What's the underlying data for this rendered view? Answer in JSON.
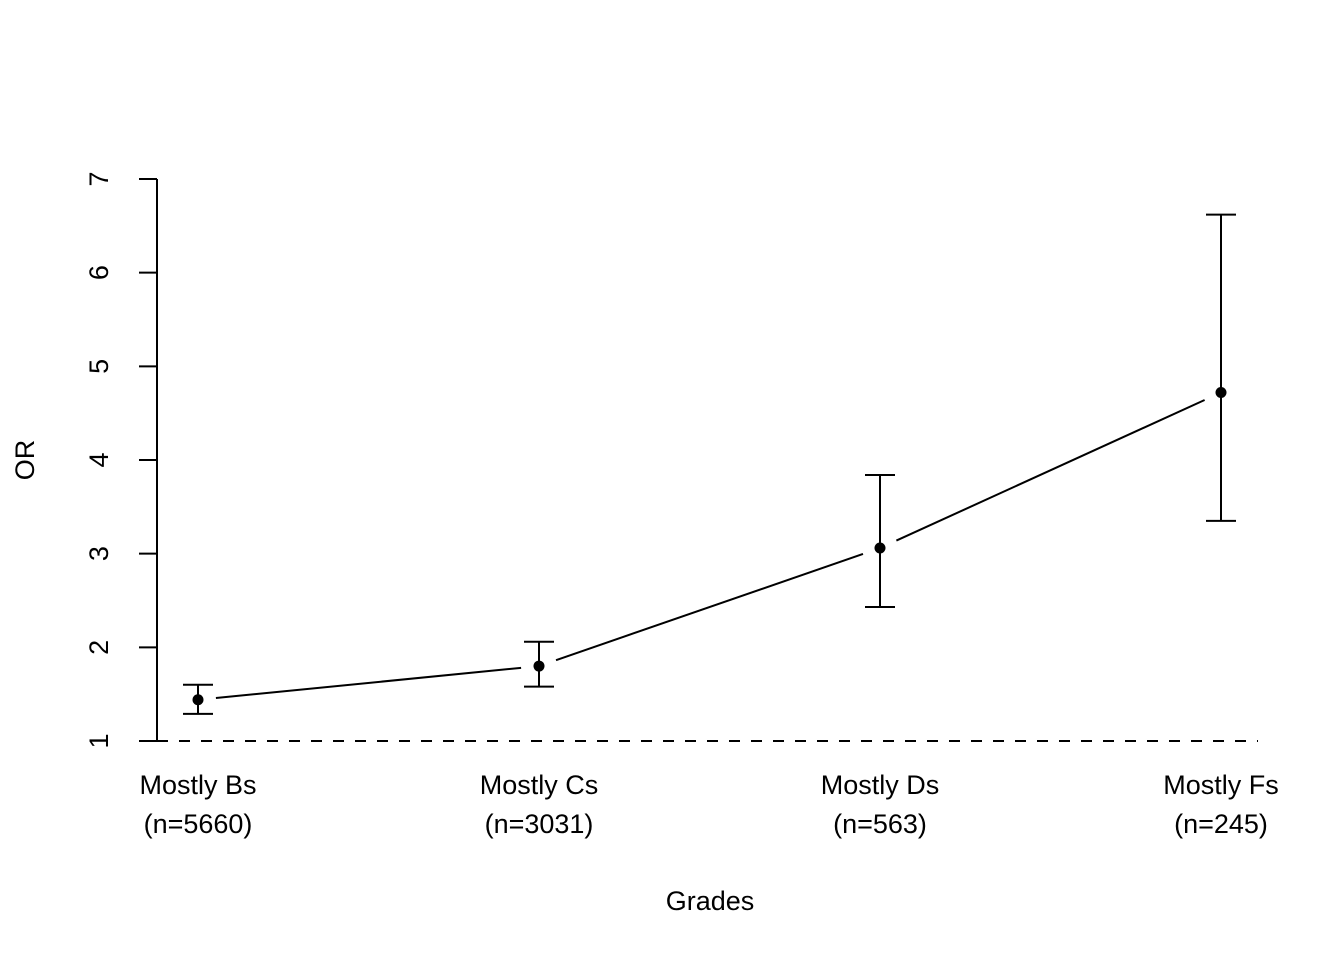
{
  "chart_data": {
    "type": "line",
    "title": "",
    "xlabel": "Grades",
    "ylabel": "OR",
    "categories": [
      {
        "name": "Mostly Bs",
        "n": "(n=5660)"
      },
      {
        "name": "Mostly Cs",
        "n": "(n=3031)"
      },
      {
        "name": "Mostly Ds",
        "n": "(n=563)"
      },
      {
        "name": "Mostly Fs",
        "n": "(n=245)"
      }
    ],
    "series": [
      {
        "values": [
          1.44,
          1.8,
          3.06,
          4.72
        ],
        "ci_lower": [
          1.29,
          1.58,
          2.43,
          3.35
        ],
        "ci_upper": [
          1.6,
          2.06,
          3.84,
          6.62
        ]
      }
    ],
    "reference_line": {
      "y": 1,
      "style": "dashed"
    },
    "yticks": [
      "1",
      "2",
      "3",
      "4",
      "5",
      "6",
      "7"
    ],
    "ylim": [
      1,
      7
    ],
    "grid": false,
    "legend": "none"
  }
}
